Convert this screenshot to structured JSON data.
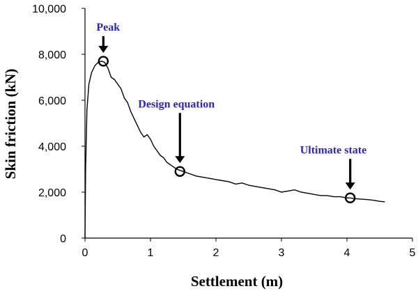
{
  "chart_data": {
    "type": "line",
    "title": "",
    "xlabel": "Settlement (m)",
    "ylabel": "Skin friction (kN)",
    "xlim": [
      0,
      5
    ],
    "ylim": [
      0,
      10000
    ],
    "x_ticks": [
      "0",
      "1",
      "2",
      "3",
      "4",
      "5"
    ],
    "y_ticks": [
      "0",
      "2,000",
      "4,000",
      "6,000",
      "8,000",
      "10,000"
    ],
    "grid": false,
    "legend": "none",
    "series": [
      {
        "color": "#000000",
        "x": [
          0.0,
          0.01,
          0.03,
          0.06,
          0.1,
          0.15,
          0.2,
          0.25,
          0.3,
          0.35,
          0.4,
          0.45,
          0.5,
          0.55,
          0.6,
          0.65,
          0.7,
          0.75,
          0.8,
          0.85,
          0.9,
          0.95,
          1.0,
          1.05,
          1.1,
          1.15,
          1.2,
          1.25,
          1.3,
          1.35,
          1.4,
          1.45,
          1.5,
          1.6,
          1.7,
          1.8,
          1.9,
          2.0,
          2.1,
          2.2,
          2.3,
          2.4,
          2.5,
          2.6,
          2.7,
          2.8,
          2.9,
          3.0,
          3.1,
          3.2,
          3.3,
          3.4,
          3.5,
          3.6,
          3.7,
          3.8,
          3.9,
          4.0,
          4.05,
          4.1,
          4.2,
          4.3,
          4.4,
          4.5,
          4.58
        ],
        "y": [
          0,
          3000,
          5600,
          6700,
          7200,
          7500,
          7650,
          7700,
          7650,
          7400,
          7000,
          6900,
          6700,
          6500,
          6100,
          5900,
          5500,
          5200,
          4900,
          4600,
          4400,
          4500,
          4300,
          4000,
          3800,
          3600,
          3500,
          3300,
          3200,
          3100,
          3000,
          2950,
          2900,
          2800,
          2700,
          2650,
          2600,
          2550,
          2500,
          2450,
          2350,
          2400,
          2300,
          2250,
          2200,
          2150,
          2100,
          2000,
          2050,
          2100,
          2000,
          1950,
          1900,
          1850,
          1850,
          1800,
          1800,
          1750,
          1750,
          1720,
          1700,
          1680,
          1650,
          1600,
          1580
        ]
      }
    ],
    "markers": [
      {
        "label": "Peak",
        "x": 0.28,
        "y": 7700
      },
      {
        "label": "Design equation",
        "x": 1.45,
        "y": 2900
      },
      {
        "label": "Ultimate  state",
        "x": 4.05,
        "y": 1750
      }
    ]
  }
}
